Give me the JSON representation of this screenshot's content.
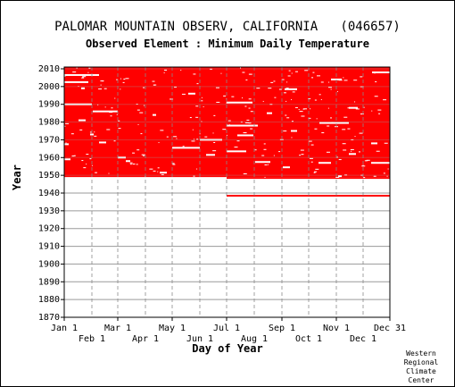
{
  "chart_data": {
    "type": "heatmap",
    "title": "PALOMAR MOUNTAIN OBSERV, CALIFORNIA   (046657)",
    "subtitle": "Observed Element : Minimum Daily Temperature",
    "xlabel": "Day of Year",
    "ylabel": "Year",
    "xlim": [
      1,
      366
    ],
    "ylim": [
      1870,
      2011
    ],
    "x_ticks_upper": [
      {
        "label": "Jan 1",
        "day": 1
      },
      {
        "label": "Mar 1",
        "day": 61
      },
      {
        "label": "May 1",
        "day": 122
      },
      {
        "label": "Jul 1",
        "day": 183
      },
      {
        "label": "Sep 1",
        "day": 245
      },
      {
        "label": "Nov 1",
        "day": 306
      },
      {
        "label": "Dec 31",
        "day": 366
      }
    ],
    "x_ticks_lower": [
      {
        "label": "Feb 1",
        "day": 32
      },
      {
        "label": "Apr 1",
        "day": 92
      },
      {
        "label": "Jun 1",
        "day": 153
      },
      {
        "label": "Aug 1",
        "day": 214
      },
      {
        "label": "Oct 1",
        "day": 275
      },
      {
        "label": "Dec 1",
        "day": 336
      }
    ],
    "y_ticks": [
      1870,
      1880,
      1890,
      1900,
      1910,
      1920,
      1930,
      1940,
      1950,
      1960,
      1970,
      1980,
      1990,
      2000,
      2010
    ],
    "grid": true,
    "series": [
      {
        "name": "",
        "color": "#ff0000",
        "periods": [
          {
            "year_start": 1938.0,
            "year_end": 1939.0,
            "day_start": 183,
            "day_end": 366
          },
          {
            "year_start": 1948.0,
            "year_end": 1949.0,
            "day_start": 183,
            "day_end": 366
          },
          {
            "year_start": 1949.0,
            "year_end": 2011.0,
            "day_start": 1,
            "day_end": 366
          }
        ]
      }
    ],
    "missing_color": "#ffffff",
    "missing_blocks": [
      {
        "year": 1990.0,
        "day_start": 1,
        "day_end": 32
      },
      {
        "year": 1986.0,
        "day_start": 33,
        "day_end": 61
      },
      {
        "year": 1981.0,
        "day_start": 17,
        "day_end": 25
      },
      {
        "year": 1965.5,
        "day_start": 122,
        "day_end": 153
      },
      {
        "year": 1970.0,
        "day_start": 153,
        "day_end": 178
      },
      {
        "year": 1991.0,
        "day_start": 183,
        "day_end": 212
      },
      {
        "year": 1978.0,
        "day_start": 183,
        "day_end": 218
      },
      {
        "year": 1972.5,
        "day_start": 195,
        "day_end": 213
      },
      {
        "year": 1963.5,
        "day_start": 183,
        "day_end": 205
      },
      {
        "year": 1979.5,
        "day_start": 287,
        "day_end": 320
      },
      {
        "year": 1957.0,
        "day_start": 345,
        "day_end": 366
      },
      {
        "year": 1951.5,
        "day_start": 108,
        "day_end": 116
      },
      {
        "year": 1960.0,
        "day_start": 61,
        "day_end": 70
      },
      {
        "year": 1959.0,
        "day_start": 1,
        "day_end": 8
      },
      {
        "year": 1998.5,
        "day_start": 248,
        "day_end": 262
      },
      {
        "year": 2002.5,
        "day_start": 1,
        "day_end": 28
      },
      {
        "year": 2006.5,
        "day_start": 1,
        "day_end": 40
      },
      {
        "year": 2008.0,
        "day_start": 346,
        "day_end": 366
      },
      {
        "year": 1949.5,
        "day_start": 308,
        "day_end": 312
      },
      {
        "year": 1957.5,
        "day_start": 215,
        "day_end": 232
      },
      {
        "year": 1954.5,
        "day_start": 246,
        "day_end": 254
      },
      {
        "year": 1967.5,
        "day_start": 1,
        "day_end": 6
      },
      {
        "year": 1968.5,
        "day_start": 40,
        "day_end": 48
      },
      {
        "year": 1961.5,
        "day_start": 160,
        "day_end": 170
      },
      {
        "year": 1957.0,
        "day_start": 286,
        "day_end": 300
      },
      {
        "year": 1975.0,
        "day_start": 255,
        "day_end": 262
      },
      {
        "year": 2004.0,
        "day_start": 300,
        "day_end": 312
      },
      {
        "year": 1996.0,
        "day_start": 140,
        "day_end": 148
      },
      {
        "year": 1984.0,
        "day_start": 100,
        "day_end": 104
      },
      {
        "year": 1988.0,
        "day_start": 320,
        "day_end": 330
      },
      {
        "year": 1968.0,
        "day_start": 345,
        "day_end": 352
      },
      {
        "year": 1958.0,
        "day_start": 70,
        "day_end": 75
      },
      {
        "year": 1962.0,
        "day_start": 320,
        "day_end": 328
      },
      {
        "year": 1973.0,
        "day_start": 30,
        "day_end": 34
      },
      {
        "year": 1999.0,
        "day_start": 20,
        "day_end": 24
      },
      {
        "year": 1985.0,
        "day_start": 228,
        "day_end": 234
      }
    ]
  },
  "credit": [
    "Western",
    "Regional",
    "Climate",
    "Center"
  ]
}
